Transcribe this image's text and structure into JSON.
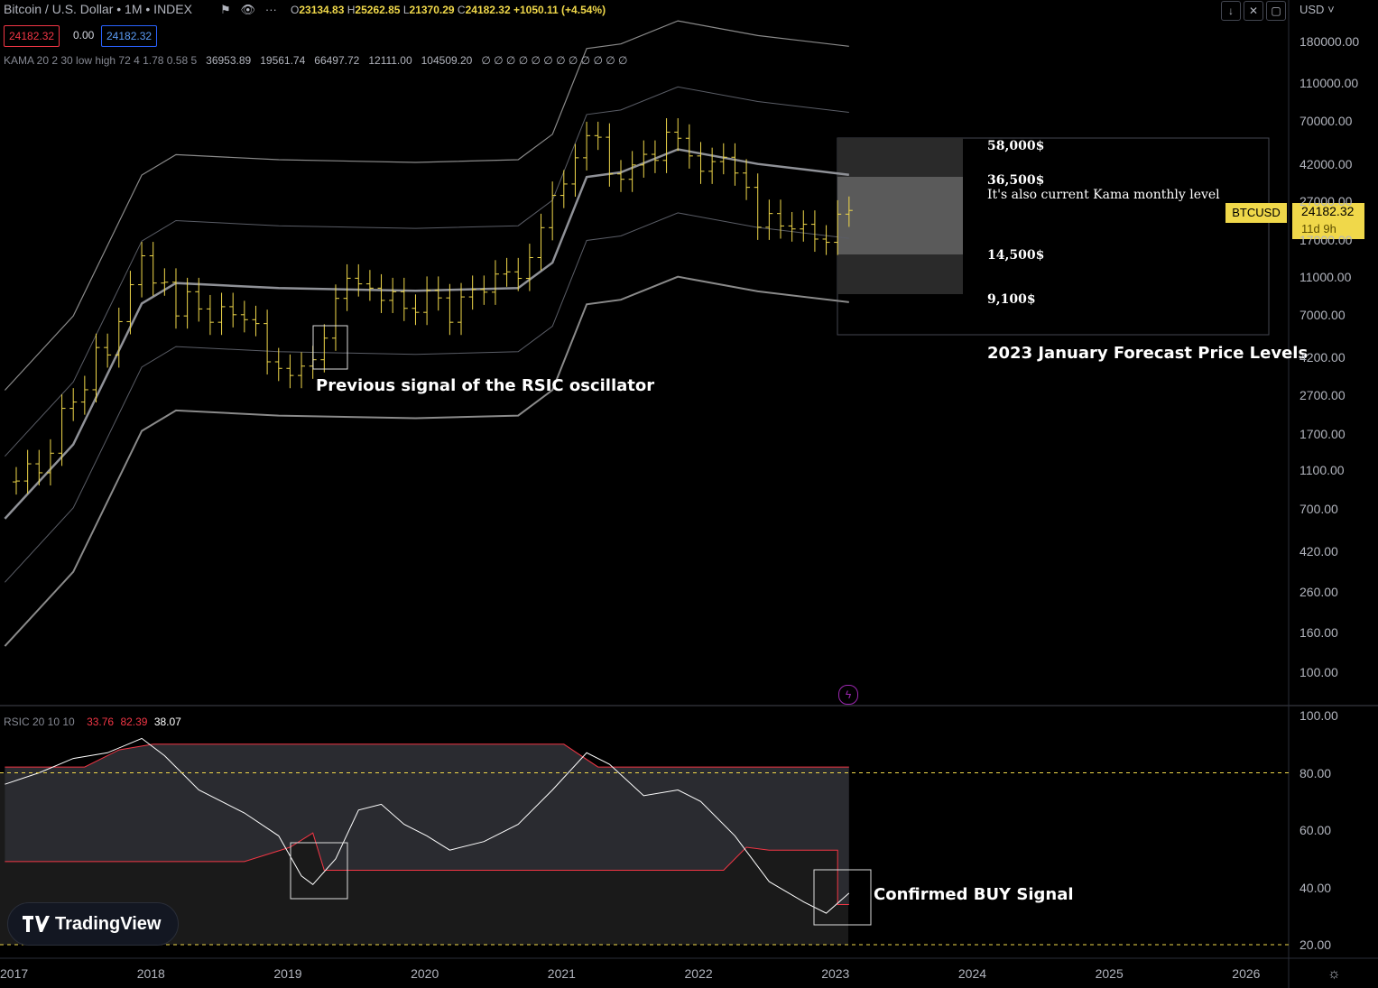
{
  "header": {
    "symbol": "Bitcoin / U.S. Dollar • 1M • INDEX",
    "ohlc": {
      "o_label": "O",
      "o": "23134.83",
      "h_label": "H",
      "h": "25262.85",
      "l_label": "L",
      "l": "21370.29",
      "c_label": "C",
      "c": "24182.32",
      "change": "+1050.11 (+4.54%)"
    },
    "bid": "24182.32",
    "spread": "0.00",
    "ask": "24182.32",
    "currency": "USD",
    "kama_label": "KAMA 20 2 30 low high 72 4 1.78 0.58 5",
    "kama_values": [
      "36953.89",
      "19561.74",
      "66497.72",
      "12111.00",
      "104509.20",
      "∅ ∅ ∅ ∅ ∅ ∅ ∅ ∅ ∅ ∅ ∅ ∅"
    ],
    "rsic_label": "RSIC 20 10 10",
    "rsic_values": [
      "33.76",
      "82.39",
      "38.07"
    ]
  },
  "price_tag": {
    "symbol": "BTCUSD",
    "price": "24182.32",
    "countdown": "11d 9h"
  },
  "colors": {
    "bar": "#f0d84a",
    "band": "#b2b5be",
    "rsi_line": "#ffffff",
    "rsi_band": "#f23645",
    "guide": "#f0d84a",
    "bg": "#000000"
  },
  "annotations": {
    "forecast_title": "2023 January Forecast Price Levels",
    "level_58": "58,000$",
    "level_36": "36,500$",
    "kama_note": "It's also current Kama monthly level",
    "level_14": "14,500$",
    "level_9": "9,100$",
    "rsic_prev": "Previous signal of the RSIC oscillator",
    "buy_signal": "Confirmed BUY Signal"
  },
  "brand": "TradingView",
  "chart_data": [
    {
      "type": "bar",
      "scale": "log",
      "ylim": [
        70,
        250000
      ],
      "yticks": [
        "180000.00",
        "110000.00",
        "70000.00",
        "42000.00",
        "27000.00",
        "17000.00",
        "11000.00",
        "7000.00",
        "4200.00",
        "2700.00",
        "1700.00",
        "1100.00",
        "700.00",
        "420.00",
        "260.00",
        "160.00",
        "100.00"
      ],
      "x_ticks": [
        "2017",
        "2018",
        "2019",
        "2020",
        "2021",
        "2022",
        "2023",
        "2024",
        "2025",
        "2026"
      ],
      "series_close": [
        {
          "date": "2016-12",
          "value": 960
        },
        {
          "date": "2017-01",
          "value": 970
        },
        {
          "date": "2017-02",
          "value": 1190
        },
        {
          "date": "2017-03",
          "value": 1070
        },
        {
          "date": "2017-04",
          "value": 1350
        },
        {
          "date": "2017-05",
          "value": 2300
        },
        {
          "date": "2017-06",
          "value": 2480
        },
        {
          "date": "2017-07",
          "value": 2870
        },
        {
          "date": "2017-08",
          "value": 4740
        },
        {
          "date": "2017-09",
          "value": 4340
        },
        {
          "date": "2017-10",
          "value": 6450
        },
        {
          "date": "2017-11",
          "value": 10000
        },
        {
          "date": "2017-12",
          "value": 14100
        },
        {
          "date": "2018-01",
          "value": 10200
        },
        {
          "date": "2018-02",
          "value": 10300
        },
        {
          "date": "2018-03",
          "value": 6900
        },
        {
          "date": "2018-04",
          "value": 9200
        },
        {
          "date": "2018-05",
          "value": 7500
        },
        {
          "date": "2018-06",
          "value": 6400
        },
        {
          "date": "2018-07",
          "value": 7700
        },
        {
          "date": "2018-08",
          "value": 7000
        },
        {
          "date": "2018-09",
          "value": 6600
        },
        {
          "date": "2018-10",
          "value": 6300
        },
        {
          "date": "2018-11",
          "value": 4000
        },
        {
          "date": "2018-12",
          "value": 3700
        },
        {
          "date": "2019-01",
          "value": 3400
        },
        {
          "date": "2019-02",
          "value": 3800
        },
        {
          "date": "2019-03",
          "value": 4100
        },
        {
          "date": "2019-04",
          "value": 5300
        },
        {
          "date": "2019-05",
          "value": 8500
        },
        {
          "date": "2019-06",
          "value": 10800
        },
        {
          "date": "2019-07",
          "value": 10100
        },
        {
          "date": "2019-08",
          "value": 9600
        },
        {
          "date": "2019-09",
          "value": 8300
        },
        {
          "date": "2019-10",
          "value": 9200
        },
        {
          "date": "2019-11",
          "value": 7550
        },
        {
          "date": "2019-12",
          "value": 7200
        },
        {
          "date": "2020-01",
          "value": 9350
        },
        {
          "date": "2020-02",
          "value": 8550
        },
        {
          "date": "2020-03",
          "value": 6400
        },
        {
          "date": "2020-04",
          "value": 8650
        },
        {
          "date": "2020-05",
          "value": 9450
        },
        {
          "date": "2020-06",
          "value": 9150
        },
        {
          "date": "2020-07",
          "value": 11350
        },
        {
          "date": "2020-08",
          "value": 11650
        },
        {
          "date": "2020-09",
          "value": 10780
        },
        {
          "date": "2020-10",
          "value": 13800
        },
        {
          "date": "2020-11",
          "value": 19700
        },
        {
          "date": "2020-12",
          "value": 28900
        },
        {
          "date": "2021-01",
          "value": 33100
        },
        {
          "date": "2021-02",
          "value": 45200
        },
        {
          "date": "2021-03",
          "value": 58800
        },
        {
          "date": "2021-04",
          "value": 57700
        },
        {
          "date": "2021-05",
          "value": 37300
        },
        {
          "date": "2021-06",
          "value": 35000
        },
        {
          "date": "2021-07",
          "value": 41500
        },
        {
          "date": "2021-08",
          "value": 47100
        },
        {
          "date": "2021-09",
          "value": 43800
        },
        {
          "date": "2021-10",
          "value": 61300
        },
        {
          "date": "2021-11",
          "value": 57000
        },
        {
          "date": "2021-12",
          "value": 46200
        },
        {
          "date": "2022-01",
          "value": 38500
        },
        {
          "date": "2022-02",
          "value": 43200
        },
        {
          "date": "2022-03",
          "value": 45500
        },
        {
          "date": "2022-04",
          "value": 37700
        },
        {
          "date": "2022-05",
          "value": 31800
        },
        {
          "date": "2022-06",
          "value": 19800
        },
        {
          "date": "2022-07",
          "value": 23300
        },
        {
          "date": "2022-08",
          "value": 20100
        },
        {
          "date": "2022-09",
          "value": 19400
        },
        {
          "date": "2022-10",
          "value": 20500
        },
        {
          "date": "2022-11",
          "value": 17200
        },
        {
          "date": "2022-12",
          "value": 16550
        },
        {
          "date": "2023-01",
          "value": 23130
        },
        {
          "date": "2023-02",
          "value": 24182
        }
      ],
      "kama_mid": [
        {
          "date": "2016-12",
          "value": 620
        },
        {
          "date": "2017-06",
          "value": 1500
        },
        {
          "date": "2017-12",
          "value": 8000
        },
        {
          "date": "2018-03",
          "value": 10200
        },
        {
          "date": "2018-12",
          "value": 9600
        },
        {
          "date": "2019-12",
          "value": 9300
        },
        {
          "date": "2020-09",
          "value": 9600
        },
        {
          "date": "2020-12",
          "value": 13000
        },
        {
          "date": "2021-03",
          "value": 36000
        },
        {
          "date": "2021-06",
          "value": 38000
        },
        {
          "date": "2021-11",
          "value": 50000
        },
        {
          "date": "2022-06",
          "value": 42000
        },
        {
          "date": "2023-02",
          "value": 36950
        }
      ],
      "forecast_levels": [
        58000,
        36500,
        14500,
        9100
      ]
    },
    {
      "type": "line",
      "name": "RSIC",
      "ylim": [
        10,
        100
      ],
      "yticks": [
        "100.00",
        "80.00",
        "60.00",
        "40.00",
        "20.00"
      ],
      "guides": [
        80,
        20
      ],
      "rsi": [
        {
          "date": "2016-12",
          "value": 76
        },
        {
          "date": "2017-03",
          "value": 80
        },
        {
          "date": "2017-06",
          "value": 85
        },
        {
          "date": "2017-09",
          "value": 87
        },
        {
          "date": "2017-12",
          "value": 92
        },
        {
          "date": "2018-02",
          "value": 86
        },
        {
          "date": "2018-05",
          "value": 74
        },
        {
          "date": "2018-09",
          "value": 66
        },
        {
          "date": "2018-12",
          "value": 58
        },
        {
          "date": "2019-02",
          "value": 44
        },
        {
          "date": "2019-03",
          "value": 41
        },
        {
          "date": "2019-05",
          "value": 50
        },
        {
          "date": "2019-07",
          "value": 67
        },
        {
          "date": "2019-09",
          "value": 69
        },
        {
          "date": "2019-11",
          "value": 62
        },
        {
          "date": "2020-01",
          "value": 58
        },
        {
          "date": "2020-03",
          "value": 53
        },
        {
          "date": "2020-06",
          "value": 56
        },
        {
          "date": "2020-09",
          "value": 62
        },
        {
          "date": "2020-12",
          "value": 74
        },
        {
          "date": "2021-03",
          "value": 87
        },
        {
          "date": "2021-05",
          "value": 83
        },
        {
          "date": "2021-08",
          "value": 72
        },
        {
          "date": "2021-11",
          "value": 74
        },
        {
          "date": "2022-01",
          "value": 70
        },
        {
          "date": "2022-04",
          "value": 58
        },
        {
          "date": "2022-07",
          "value": 42
        },
        {
          "date": "2022-10",
          "value": 35
        },
        {
          "date": "2022-12",
          "value": 31
        },
        {
          "date": "2023-02",
          "value": 38
        }
      ],
      "upper_band": [
        {
          "date": "2016-12",
          "value": 82
        },
        {
          "date": "2017-07",
          "value": 82
        },
        {
          "date": "2017-10",
          "value": 88
        },
        {
          "date": "2018-01",
          "value": 90
        },
        {
          "date": "2021-01",
          "value": 90
        },
        {
          "date": "2021-04",
          "value": 82
        },
        {
          "date": "2023-02",
          "value": 82
        }
      ],
      "lower_band": [
        {
          "date": "2016-12",
          "value": 49
        },
        {
          "date": "2018-09",
          "value": 49
        },
        {
          "date": "2019-01",
          "value": 54
        },
        {
          "date": "2019-03",
          "value": 59
        },
        {
          "date": "2019-04",
          "value": 46
        },
        {
          "date": "2022-03",
          "value": 46
        },
        {
          "date": "2022-05",
          "value": 54
        },
        {
          "date": "2022-07",
          "value": 53
        },
        {
          "date": "2023-01",
          "value": 53
        },
        {
          "date": "2023-01",
          "value": 34
        },
        {
          "date": "2023-02",
          "value": 34
        }
      ]
    }
  ]
}
